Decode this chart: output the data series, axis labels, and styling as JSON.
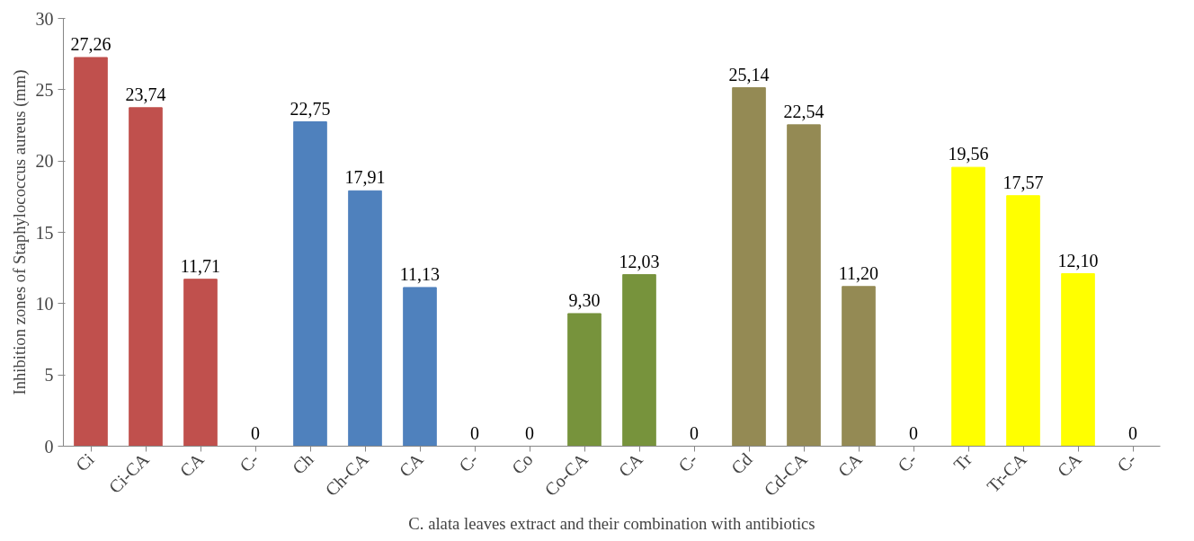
{
  "chart_data": {
    "type": "bar",
    "xlabel": "C. alata leaves extract and their combination with antibiotics",
    "ylabel": "Inhibition zones of Staphylococcus aureus (mm)",
    "categories": [
      "Ci",
      "Ci-CA",
      "CA",
      "C-",
      "Ch",
      "Ch-CA",
      "CA",
      "C-",
      "Co",
      "Co-CA",
      "CA",
      "C-",
      "Cd",
      "Cd-CA",
      "CA",
      "C-",
      "Tr",
      "Tr-CA",
      "CA",
      "C-"
    ],
    "values": [
      27.26,
      23.74,
      11.71,
      0,
      22.75,
      17.91,
      11.13,
      0,
      0,
      9.3,
      12.03,
      0,
      25.14,
      22.54,
      11.2,
      0,
      19.56,
      17.57,
      12.1,
      0
    ],
    "value_labels": [
      "27,26",
      "23,74",
      "11,71",
      "0",
      "22,75",
      "17,91",
      "11,13",
      "0",
      "0",
      "9,30",
      "12,03",
      "0",
      "25,14",
      "22,54",
      "11,20",
      "0",
      "19,56",
      "17,57",
      "12,10",
      "0"
    ],
    "colors": [
      "#c0504d",
      "#c0504d",
      "#c0504d",
      "#c0504d",
      "#4f81bd",
      "#4f81bd",
      "#4f81bd",
      "#4f81bd",
      "#77933c",
      "#77933c",
      "#77933c",
      "#77933c",
      "#948a54",
      "#948a54",
      "#948a54",
      "#948a54",
      "#ffff00",
      "#ffff00",
      "#ffff00",
      "#ffff00"
    ],
    "ylim": [
      0,
      30
    ],
    "yticks": [
      0,
      5,
      10,
      15,
      20,
      25,
      30
    ],
    "grid": false
  }
}
